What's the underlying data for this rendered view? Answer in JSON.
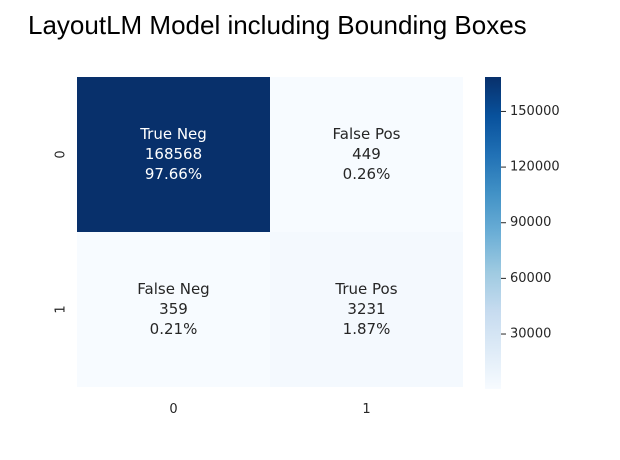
{
  "chart_data": {
    "type": "heatmap",
    "title": "LayoutLM Model including Bounding Boxes",
    "x_tick_labels": [
      "0",
      "1"
    ],
    "y_tick_labels": [
      "0",
      "1"
    ],
    "cells": [
      [
        {
          "label": "True Neg",
          "count": "168568",
          "percent": "97.66%",
          "value": 168568
        },
        {
          "label": "False Pos",
          "count": "449",
          "percent": "0.26%",
          "value": 449
        }
      ],
      [
        {
          "label": "False Neg",
          "count": "359",
          "percent": "0.21%",
          "value": 359
        },
        {
          "label": "True Pos",
          "count": "3231",
          "percent": "1.87%",
          "value": 3231
        }
      ]
    ],
    "colorbar": {
      "colormap": "Blues",
      "vmin": 359,
      "vmax": 168568,
      "ticks": [
        30000,
        60000,
        90000,
        120000,
        150000
      ],
      "tick_labels": [
        "30000",
        "60000",
        "90000",
        "120000",
        "150000"
      ]
    }
  }
}
